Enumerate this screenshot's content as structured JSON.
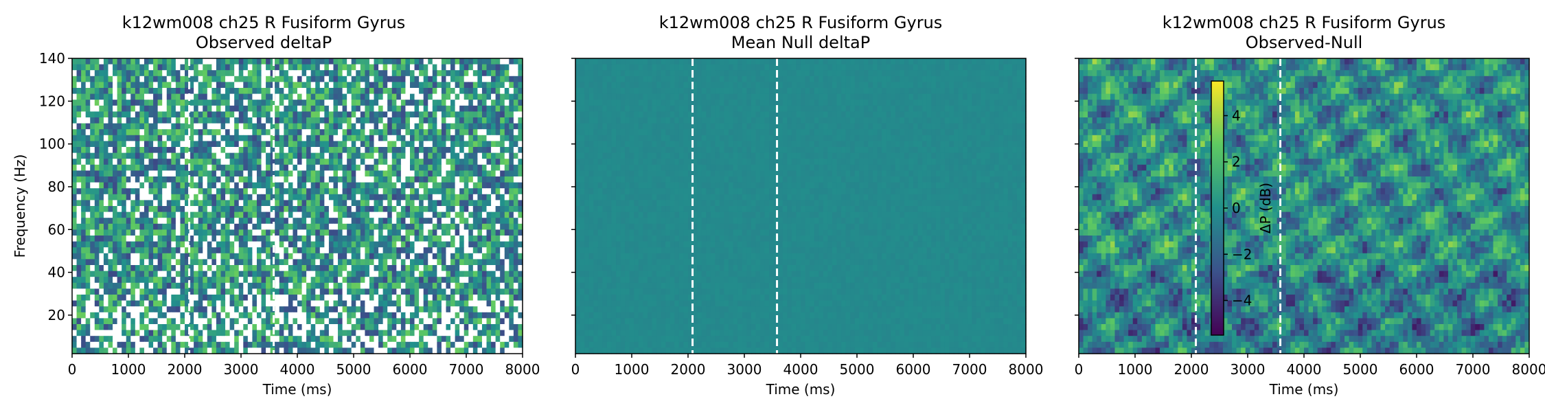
{
  "chart_data": [
    {
      "type": "heatmap",
      "title_line1": "k12wm008 ch25 R Fusiform Gyrus",
      "title_line2": "Observed deltaP",
      "xlabel": "Time (ms)",
      "ylabel": "Frequency (Hz)",
      "xlim": [
        0,
        8000
      ],
      "ylim": [
        2,
        140
      ],
      "xticks": [
        "0",
        "1000",
        "2000",
        "3000",
        "4000",
        "5000",
        "6000",
        "7000",
        "8000"
      ],
      "yticks": [
        "20",
        "40",
        "60",
        "80",
        "100",
        "120",
        "140"
      ],
      "colormap": "viridis",
      "event_lines_ms": [
        2080,
        3580
      ],
      "masked_cells": "white gaps (non-significant)"
    },
    {
      "type": "heatmap",
      "title_line1": "k12wm008 ch25 R Fusiform Gyrus",
      "title_line2": "Mean Null deltaP",
      "xlabel": "Time (ms)",
      "ylabel": "",
      "xlim": [
        0,
        8000
      ],
      "ylim": [
        2,
        140
      ],
      "xticks": [
        "0",
        "1000",
        "2000",
        "3000",
        "4000",
        "5000",
        "6000",
        "7000",
        "8000"
      ],
      "yticks": [],
      "colormap": "viridis",
      "event_lines_ms": [
        2080,
        3580
      ]
    },
    {
      "type": "heatmap",
      "title_line1": "k12wm008 ch25 R Fusiform Gyrus",
      "title_line2": "Observed-Null",
      "xlabel": "Time (ms)",
      "ylabel": "",
      "xlim": [
        0,
        8000
      ],
      "ylim": [
        2,
        140
      ],
      "xticks": [
        "0",
        "1000",
        "2000",
        "3000",
        "4000",
        "5000",
        "6000",
        "7000",
        "8000"
      ],
      "yticks": [],
      "colormap": "viridis",
      "event_lines_ms": [
        2080,
        3580
      ]
    }
  ],
  "colorbar": {
    "label": "ΔP (dB)",
    "range": [
      -5.5,
      5.5
    ],
    "ticks": [
      "4",
      "2",
      "0",
      "−2",
      "−4"
    ],
    "tick_values": [
      4,
      2,
      0,
      -2,
      -4
    ]
  },
  "colors": {
    "axis": "#000000",
    "event_line": "#ffffff",
    "viridis": [
      "#440154",
      "#3b528b",
      "#21918c",
      "#5ec962",
      "#fde725"
    ]
  }
}
